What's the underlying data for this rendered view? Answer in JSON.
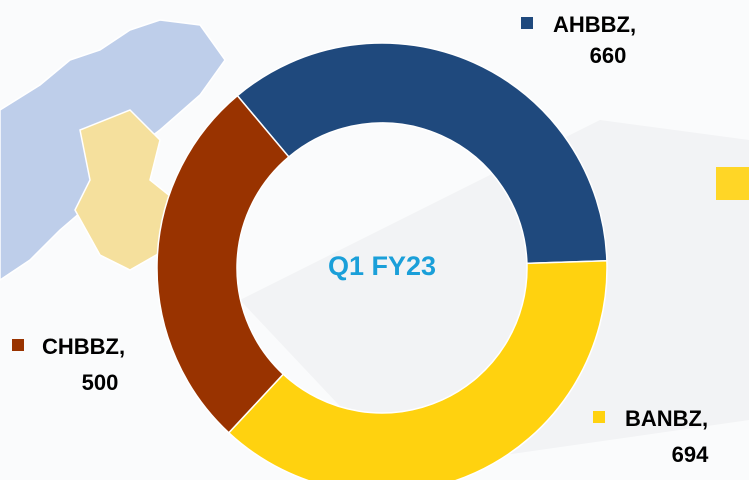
{
  "chart_data": {
    "type": "donut",
    "center_label": "Q1 FY23",
    "categories": [
      "AHBBZ,",
      "BANBZ,",
      "CHBBZ,"
    ],
    "values": [
      660,
      694,
      500
    ],
    "colors": [
      "#1f497d",
      "#ffd20f",
      "#993300"
    ]
  }
}
